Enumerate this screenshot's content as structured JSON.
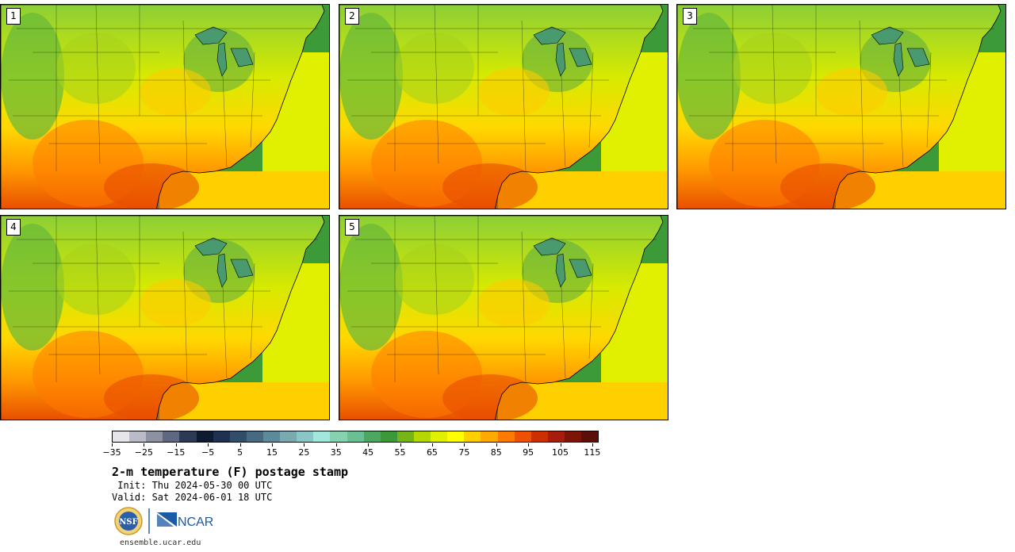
{
  "stamps": [
    {
      "label": "1"
    },
    {
      "label": "2"
    },
    {
      "label": "3"
    },
    {
      "label": "4"
    },
    {
      "label": "5"
    }
  ],
  "colorbar": {
    "colors": [
      "#e6e6ea",
      "#b9bcc6",
      "#8c92a2",
      "#5f6880",
      "#2d3a55",
      "#0e1a30",
      "#1e3150",
      "#324d6a",
      "#466a82",
      "#5c8a98",
      "#7aaab0",
      "#8ac6c6",
      "#a2e6dc",
      "#86d2b0",
      "#6ac094",
      "#4ca860",
      "#3c9838",
      "#76b418",
      "#b4d800",
      "#e0f000",
      "#ffff00",
      "#ffd000",
      "#ffaa00",
      "#ff7a00",
      "#ee5000",
      "#cc3000",
      "#a81c0c",
      "#7c1408",
      "#5a1008"
    ],
    "tick_labels": [
      "-35",
      "-25",
      "-15",
      "-5",
      "5",
      "15",
      "25",
      "35",
      "45",
      "55",
      "65",
      "75",
      "85",
      "95",
      "105",
      "115"
    ]
  },
  "title": "2-m temperature (F) postage stamp",
  "init": " Init: Thu 2024-05-30 00 UTC",
  "valid": "Valid: Sat 2024-06-01 18 UTC",
  "logos": {
    "nsf_text": "NSF",
    "ncar_text": "NCAR"
  },
  "footer_url": "ensemble.ucar.edu"
}
